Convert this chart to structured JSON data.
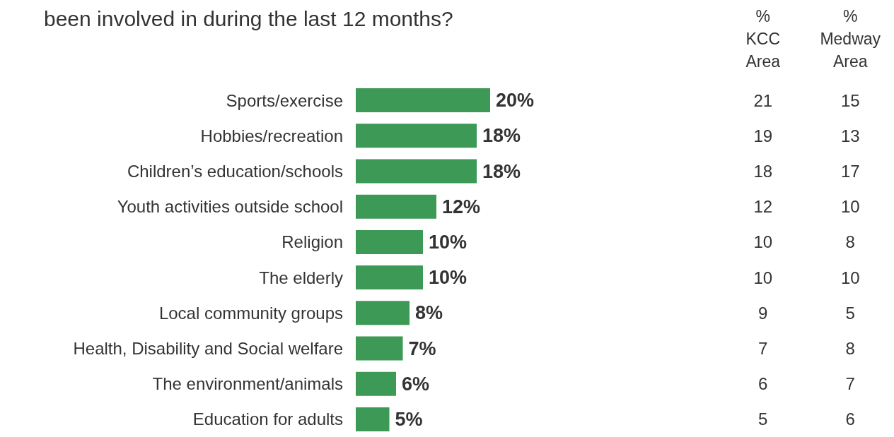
{
  "chart_data": [
    {
      "type": "bar",
      "orientation": "horizontal",
      "title": "been involved in during the last 12 months?",
      "categories": [
        "Sports/exercise",
        "Hobbies/recreation",
        "Children’s education/schools",
        "Youth activities outside school",
        "Religion",
        "The elderly",
        "Local community groups",
        "Health, Disability and Social welfare",
        "The environment/animals",
        "Education for adults"
      ],
      "values": [
        20,
        18,
        18,
        12,
        10,
        10,
        8,
        7,
        6,
        5
      ],
      "value_labels": [
        "20%",
        "18%",
        "18%",
        "12%",
        "10%",
        "10%",
        "8%",
        "7%",
        "6%",
        "5%"
      ],
      "color": "#3d9956",
      "tick_labels": "y",
      "grid": false
    },
    {
      "type": "heatmap",
      "categories": [
        "%\nKCC\nArea",
        "%\nMedway\nArea"
      ],
      "y_categories": [
        null,
        null,
        null,
        null,
        null,
        null,
        null,
        null,
        null,
        null
      ],
      "data_labels": true,
      "cells": [
        [
          21,
          15
        ],
        [
          19,
          13
        ],
        [
          18,
          17
        ],
        [
          12,
          10
        ],
        [
          10,
          8
        ],
        [
          10,
          10
        ],
        [
          9,
          5
        ],
        [
          7,
          8
        ],
        [
          6,
          7
        ],
        [
          5,
          6
        ]
      ]
    }
  ]
}
